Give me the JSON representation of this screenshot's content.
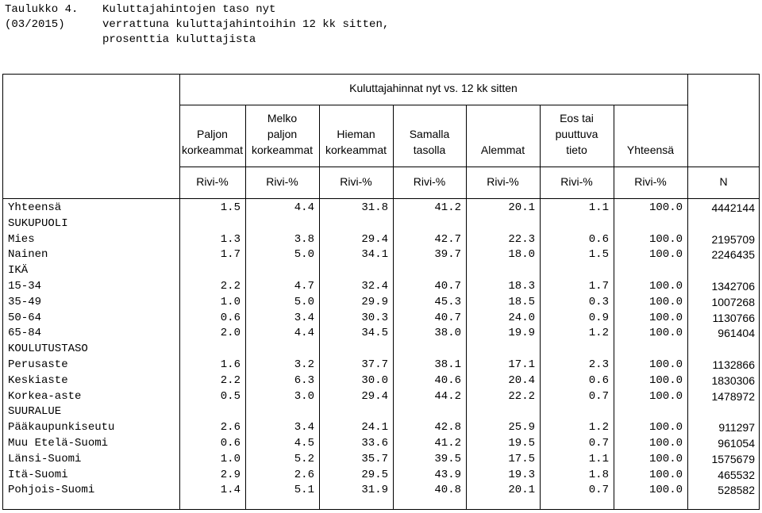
{
  "caption": {
    "table_no": "Taulukko 4.",
    "period": "(03/2015)",
    "title_lines": [
      "Kuluttajahintojen taso nyt",
      "verrattuna kuluttajahintoihin 12 kk sitten,",
      "prosenttia kuluttajista"
    ]
  },
  "table": {
    "super_header": "Kuluttajahinnat nyt vs. 12 kk sitten",
    "columns": [
      {
        "lines": [
          "",
          "Paljon",
          "korkeammat"
        ],
        "unit": "Rivi-%"
      },
      {
        "lines": [
          "Melko",
          "paljon",
          "korkeammat"
        ],
        "unit": "Rivi-%"
      },
      {
        "lines": [
          "",
          "Hieman",
          "korkeammat"
        ],
        "unit": "Rivi-%"
      },
      {
        "lines": [
          "",
          "Samalla",
          "tasolla"
        ],
        "unit": "Rivi-%"
      },
      {
        "lines": [
          "",
          "",
          "Alemmat"
        ],
        "unit": "Rivi-%"
      },
      {
        "lines": [
          "Eos tai",
          "puuttuva",
          "tieto"
        ],
        "unit": "Rivi-%"
      },
      {
        "lines": [
          "",
          "",
          "Yhteensä"
        ],
        "unit": "Rivi-%"
      },
      {
        "lines": [
          "",
          "",
          ""
        ],
        "unit": "N"
      }
    ],
    "rows": [
      {
        "label": "Yhteensä",
        "values": [
          "1.5",
          "4.4",
          "31.8",
          "41.2",
          "20.1",
          "1.1",
          "100.0",
          "4442144"
        ]
      },
      {
        "label": "SUKUPUOLI",
        "values": []
      },
      {
        "label": "Mies",
        "values": [
          "1.3",
          "3.8",
          "29.4",
          "42.7",
          "22.3",
          "0.6",
          "100.0",
          "2195709"
        ]
      },
      {
        "label": "Nainen",
        "values": [
          "1.7",
          "5.0",
          "34.1",
          "39.7",
          "18.0",
          "1.5",
          "100.0",
          "2246435"
        ]
      },
      {
        "label": "IKÄ",
        "values": []
      },
      {
        "label": "15-34",
        "values": [
          "2.2",
          "4.7",
          "32.4",
          "40.7",
          "18.3",
          "1.7",
          "100.0",
          "1342706"
        ]
      },
      {
        "label": "35-49",
        "values": [
          "1.0",
          "5.0",
          "29.9",
          "45.3",
          "18.5",
          "0.3",
          "100.0",
          "1007268"
        ]
      },
      {
        "label": "50-64",
        "values": [
          "0.6",
          "3.4",
          "30.3",
          "40.7",
          "24.0",
          "0.9",
          "100.0",
          "1130766"
        ]
      },
      {
        "label": "65-84",
        "values": [
          "2.0",
          "4.4",
          "34.5",
          "38.0",
          "19.9",
          "1.2",
          "100.0",
          "961404"
        ]
      },
      {
        "label": "KOULUTUSTASO",
        "values": []
      },
      {
        "label": "Perusaste",
        "values": [
          "1.6",
          "3.2",
          "37.7",
          "38.1",
          "17.1",
          "2.3",
          "100.0",
          "1132866"
        ]
      },
      {
        "label": "Keskiaste",
        "values": [
          "2.2",
          "6.3",
          "30.0",
          "40.6",
          "20.4",
          "0.6",
          "100.0",
          "1830306"
        ]
      },
      {
        "label": "Korkea-aste",
        "values": [
          "0.5",
          "3.0",
          "29.4",
          "44.2",
          "22.2",
          "0.7",
          "100.0",
          "1478972"
        ]
      },
      {
        "label": "SUURALUE",
        "values": []
      },
      {
        "label": "Pääkaupunkiseutu",
        "values": [
          "2.6",
          "3.4",
          "24.1",
          "42.8",
          "25.9",
          "1.2",
          "100.0",
          "911297"
        ]
      },
      {
        "label": "Muu Etelä-Suomi",
        "values": [
          "0.6",
          "4.5",
          "33.6",
          "41.2",
          "19.5",
          "0.7",
          "100.0",
          "961054"
        ]
      },
      {
        "label": "Länsi-Suomi",
        "values": [
          "1.0",
          "5.2",
          "35.7",
          "39.5",
          "17.5",
          "1.1",
          "100.0",
          "1575679"
        ]
      },
      {
        "label": "Itä-Suomi",
        "values": [
          "2.9",
          "2.6",
          "29.5",
          "43.9",
          "19.3",
          "1.8",
          "100.0",
          "465532"
        ]
      },
      {
        "label": "Pohjois-Suomi",
        "values": [
          "1.4",
          "5.1",
          "31.9",
          "40.8",
          "20.1",
          "0.7",
          "100.0",
          "528582"
        ]
      }
    ]
  }
}
